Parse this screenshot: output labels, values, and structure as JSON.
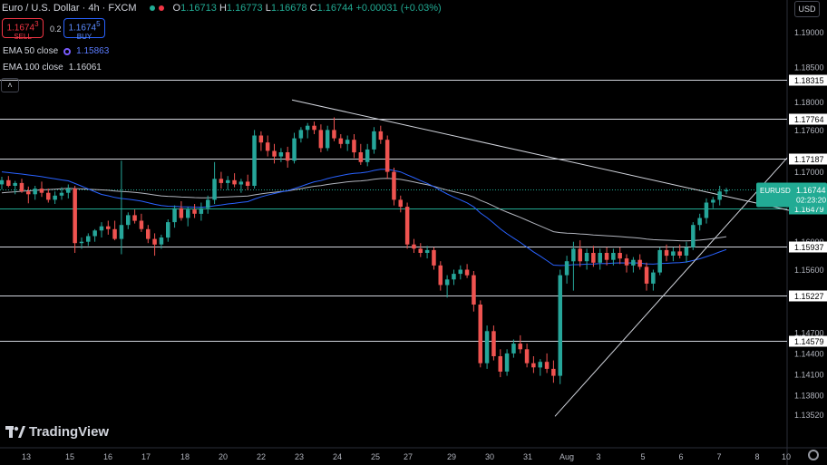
{
  "header": {
    "symbol": "Euro / U.S. Dollar · 4h · FXCM",
    "ohlc_prefix": "O",
    "open": "1.16713",
    "high_prefix": "H",
    "high": "1.16773",
    "low_prefix": "L",
    "low": "1.16678",
    "close_prefix": "C",
    "close": "1.16744",
    "change": "+0.00031 (+0.03%)"
  },
  "trade": {
    "sell_price": "1.1674",
    "sell_sup": "3",
    "sell_label": "SELL",
    "spread": "0.2",
    "buy_price": "1.1674",
    "buy_sup": "5",
    "buy_label": "BUY"
  },
  "indicators": {
    "ema50_label": "EMA 50 close",
    "ema50_value": "1.15863",
    "ema100_label": "EMA 100 close",
    "ema100_value": "1.16061"
  },
  "currency_button": "USD",
  "logo_text": "TradingView",
  "colors": {
    "up": "#26a69a",
    "down": "#ef5350",
    "ema50": "#2962ff",
    "ema100": "#b2b5be",
    "price_tag": "#22ab94",
    "level_green": "#22ab94"
  },
  "chart_data": {
    "type": "candlestick",
    "symbol_tag": "EURUSD",
    "last_price": "1.16744",
    "countdown": "02:23:20",
    "ylim": [
      1.135,
      1.1935
    ],
    "y_ticks": [
      "1.19000",
      "1.18500",
      "1.18000",
      "1.17600",
      "1.17000",
      "1.16000",
      "1.15600",
      "1.14700",
      "1.14400",
      "1.14100",
      "1.13800",
      "1.13520"
    ],
    "x_ticks": [
      "13",
      "15",
      "16",
      "17",
      "18",
      "20",
      "22",
      "23",
      "24",
      "25",
      "27",
      "29",
      "30",
      "31",
      "Aug",
      "3",
      "5",
      "6",
      "7",
      "8",
      "10"
    ],
    "support_resistance_levels": [
      "1.18315",
      "1.17764",
      "1.17187",
      "1.15937",
      "1.15227",
      "1.14579"
    ],
    "green_level": "1.16479",
    "trendline_down": {
      "from": [
        "Jul 23",
        1.1803
      ],
      "to": [
        "Aug 8",
        1.1645
      ]
    },
    "trendline_up": {
      "from": [
        "Aug 3",
        1.135
      ],
      "to": [
        "Aug 8",
        1.172
      ]
    },
    "candles": [
      [
        1.1682,
        1.1693,
        1.1675,
        1.1688
      ],
      [
        1.1688,
        1.1694,
        1.1678,
        1.168
      ],
      [
        1.168,
        1.1687,
        1.1668,
        1.1684
      ],
      [
        1.1684,
        1.169,
        1.167,
        1.1672
      ],
      [
        1.1672,
        1.1679,
        1.1655,
        1.1668
      ],
      [
        1.1668,
        1.168,
        1.166,
        1.1676
      ],
      [
        1.1676,
        1.1686,
        1.1664,
        1.167
      ],
      [
        1.167,
        1.1676,
        1.1656,
        1.166
      ],
      [
        1.166,
        1.1672,
        1.1654,
        1.1666
      ],
      [
        1.1666,
        1.1678,
        1.166,
        1.167
      ],
      [
        1.167,
        1.1682,
        1.1662,
        1.1676
      ],
      [
        1.1676,
        1.168,
        1.1584,
        1.1598
      ],
      [
        1.1598,
        1.1606,
        1.159,
        1.16
      ],
      [
        1.16,
        1.1612,
        1.1594,
        1.1608
      ],
      [
        1.1608,
        1.1618,
        1.16,
        1.1616
      ],
      [
        1.1616,
        1.1628,
        1.1606,
        1.1622
      ],
      [
        1.1622,
        1.163,
        1.161,
        1.1618
      ],
      [
        1.1618,
        1.163,
        1.1602,
        1.1604
      ],
      [
        1.1604,
        1.1716,
        1.1582,
        1.1624
      ],
      [
        1.1624,
        1.1642,
        1.1618,
        1.1638
      ],
      [
        1.1638,
        1.1646,
        1.1626,
        1.163
      ],
      [
        1.163,
        1.164,
        1.1614,
        1.1618
      ],
      [
        1.1618,
        1.1624,
        1.1598,
        1.1604
      ],
      [
        1.1604,
        1.1612,
        1.158,
        1.1596
      ],
      [
        1.1596,
        1.161,
        1.159,
        1.1606
      ],
      [
        1.1606,
        1.1632,
        1.16,
        1.1628
      ],
      [
        1.1628,
        1.1652,
        1.162,
        1.1648
      ],
      [
        1.1648,
        1.1658,
        1.163,
        1.1634
      ],
      [
        1.1634,
        1.165,
        1.1622,
        1.1646
      ],
      [
        1.1646,
        1.1654,
        1.1634,
        1.164
      ],
      [
        1.164,
        1.1656,
        1.163,
        1.1648
      ],
      [
        1.1648,
        1.1666,
        1.164,
        1.166
      ],
      [
        1.166,
        1.1714,
        1.1654,
        1.169
      ],
      [
        1.169,
        1.17,
        1.1676,
        1.1684
      ],
      [
        1.1684,
        1.1694,
        1.1674,
        1.1688
      ],
      [
        1.1688,
        1.1698,
        1.1678,
        1.1682
      ],
      [
        1.1682,
        1.169,
        1.167,
        1.1686
      ],
      [
        1.1686,
        1.1696,
        1.1674,
        1.168
      ],
      [
        1.168,
        1.176,
        1.1676,
        1.1752
      ],
      [
        1.1752,
        1.1758,
        1.173,
        1.1742
      ],
      [
        1.1742,
        1.1752,
        1.1722,
        1.173
      ],
      [
        1.173,
        1.174,
        1.1712,
        1.1722
      ],
      [
        1.1722,
        1.1734,
        1.1714,
        1.1728
      ],
      [
        1.1728,
        1.1736,
        1.1706,
        1.1716
      ],
      [
        1.1716,
        1.1756,
        1.1712,
        1.1748
      ],
      [
        1.1748,
        1.1764,
        1.1742,
        1.176
      ],
      [
        1.176,
        1.177,
        1.1748,
        1.1766
      ],
      [
        1.1766,
        1.1772,
        1.1754,
        1.176
      ],
      [
        1.176,
        1.1768,
        1.1728,
        1.1734
      ],
      [
        1.1734,
        1.1766,
        1.173,
        1.176
      ],
      [
        1.176,
        1.1778,
        1.1744,
        1.1748
      ],
      [
        1.1748,
        1.1754,
        1.1734,
        1.174
      ],
      [
        1.174,
        1.1752,
        1.173,
        1.1746
      ],
      [
        1.1746,
        1.1754,
        1.172,
        1.1728
      ],
      [
        1.1728,
        1.174,
        1.171,
        1.1714
      ],
      [
        1.1714,
        1.174,
        1.1708,
        1.1732
      ],
      [
        1.1732,
        1.1764,
        1.1726,
        1.1758
      ],
      [
        1.1758,
        1.1766,
        1.174,
        1.1746
      ],
      [
        1.1746,
        1.1752,
        1.169,
        1.17
      ],
      [
        1.17,
        1.1706,
        1.1652,
        1.166
      ],
      [
        1.166,
        1.1666,
        1.1642,
        1.165
      ],
      [
        1.165,
        1.1656,
        1.159,
        1.1596
      ],
      [
        1.1596,
        1.1604,
        1.1584,
        1.159
      ],
      [
        1.159,
        1.1598,
        1.1578,
        1.1584
      ],
      [
        1.1584,
        1.1594,
        1.1576,
        1.1588
      ],
      [
        1.1588,
        1.1592,
        1.156,
        1.1566
      ],
      [
        1.1566,
        1.1572,
        1.153,
        1.1538
      ],
      [
        1.1538,
        1.1552,
        1.152,
        1.1546
      ],
      [
        1.1546,
        1.156,
        1.1538,
        1.1554
      ],
      [
        1.1554,
        1.1566,
        1.1546,
        1.156
      ],
      [
        1.156,
        1.1568,
        1.1548,
        1.1552
      ],
      [
        1.1552,
        1.1558,
        1.15,
        1.151
      ],
      [
        1.151,
        1.1516,
        1.142,
        1.1426
      ],
      [
        1.1426,
        1.148,
        1.1418,
        1.1472
      ],
      [
        1.1472,
        1.148,
        1.143,
        1.1436
      ],
      [
        1.1436,
        1.1446,
        1.1406,
        1.1414
      ],
      [
        1.1414,
        1.1446,
        1.1408,
        1.144
      ],
      [
        1.144,
        1.146,
        1.1434,
        1.1454
      ],
      [
        1.1454,
        1.1466,
        1.144,
        1.1446
      ],
      [
        1.1446,
        1.1454,
        1.142,
        1.1426
      ],
      [
        1.1426,
        1.1436,
        1.1412,
        1.142
      ],
      [
        1.142,
        1.1432,
        1.1408,
        1.1428
      ],
      [
        1.1428,
        1.144,
        1.1412,
        1.1418
      ],
      [
        1.1418,
        1.143,
        1.1398,
        1.1408
      ],
      [
        1.1408,
        1.156,
        1.1396,
        1.1552
      ],
      [
        1.1552,
        1.158,
        1.154,
        1.1572
      ],
      [
        1.1572,
        1.16,
        1.153,
        1.159
      ],
      [
        1.159,
        1.1602,
        1.1564,
        1.1572
      ],
      [
        1.1572,
        1.159,
        1.156,
        1.1584
      ],
      [
        1.1584,
        1.1594,
        1.1564,
        1.157
      ],
      [
        1.157,
        1.159,
        1.156,
        1.1584
      ],
      [
        1.1584,
        1.1592,
        1.1566,
        1.1574
      ],
      [
        1.1574,
        1.159,
        1.1566,
        1.1584
      ],
      [
        1.1584,
        1.1592,
        1.1568,
        1.1576
      ],
      [
        1.1576,
        1.1582,
        1.1556,
        1.1566
      ],
      [
        1.1566,
        1.1578,
        1.1556,
        1.1574
      ],
      [
        1.1574,
        1.1582,
        1.156,
        1.1564
      ],
      [
        1.1564,
        1.157,
        1.153,
        1.154
      ],
      [
        1.154,
        1.156,
        1.153,
        1.1556
      ],
      [
        1.1556,
        1.1592,
        1.1552,
        1.1588
      ],
      [
        1.1588,
        1.1596,
        1.1572,
        1.158
      ],
      [
        1.158,
        1.1592,
        1.1572,
        1.1586
      ],
      [
        1.1586,
        1.1596,
        1.1576,
        1.158
      ],
      [
        1.158,
        1.16,
        1.157,
        1.1592
      ],
      [
        1.1592,
        1.1628,
        1.1588,
        1.1624
      ],
      [
        1.1624,
        1.164,
        1.1616,
        1.1634
      ],
      [
        1.1634,
        1.1662,
        1.1626,
        1.1656
      ],
      [
        1.1656,
        1.1664,
        1.1648,
        1.166
      ],
      [
        1.166,
        1.168,
        1.1652,
        1.1672
      ],
      [
        1.1672,
        1.1677,
        1.1668,
        1.1674
      ]
    ]
  }
}
